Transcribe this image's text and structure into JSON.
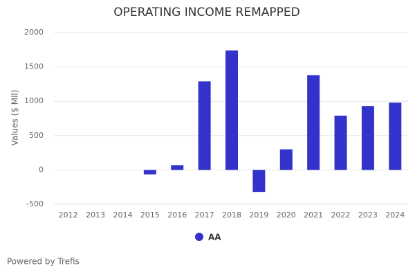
{
  "chart_data": {
    "type": "bar",
    "title": "OPERATING INCOME REMAPPED",
    "y_label": "Values ($ Mil)",
    "categories": [
      "2012",
      "2013",
      "2014",
      "2015",
      "2016",
      "2017",
      "2018",
      "2019",
      "2020",
      "2021",
      "2022",
      "2023",
      "2024"
    ],
    "series": [
      {
        "name": "AA",
        "color": "#3333cc",
        "values": [
          0,
          0,
          0,
          -65,
          70,
          1290,
          1740,
          -320,
          300,
          1380,
          790,
          930,
          980
        ]
      }
    ],
    "ylim": [
      -500,
      2000
    ],
    "yticks": [
      -500,
      0,
      500,
      1000,
      1500,
      2000
    ],
    "grid": true
  },
  "footer": "Powered by Trefis"
}
